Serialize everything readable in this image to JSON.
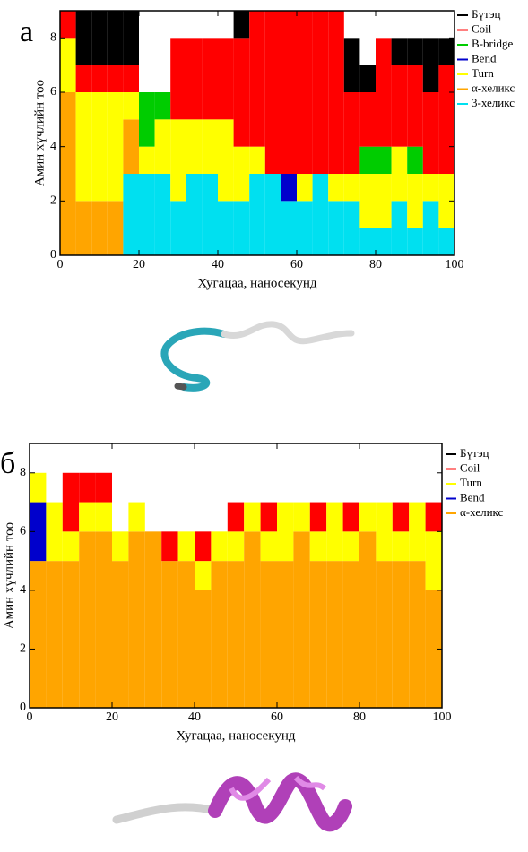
{
  "chart_data": [
    {
      "type": "stacked_bar",
      "panel_label": "а",
      "xlabel": "Хугацаа, наносекунд",
      "ylabel": "Амин хүчлийн тоо",
      "x": [
        0,
        4,
        8,
        12,
        16,
        20,
        24,
        28,
        32,
        36,
        40,
        44,
        48,
        52,
        56,
        60,
        64,
        68,
        72,
        76,
        80,
        84,
        88,
        92,
        96
      ],
      "xlim": [
        0,
        100
      ],
      "ylim": [
        0,
        9
      ],
      "xticks": [
        0,
        20,
        40,
        60,
        80,
        100
      ],
      "yticks": [
        0,
        2,
        4,
        6,
        8
      ],
      "series": [
        {
          "name": "Бүтэц",
          "color": "#000000",
          "values": [
            0,
            2,
            2,
            2,
            2,
            0,
            0,
            0,
            0,
            0,
            0,
            1,
            0,
            0,
            0,
            0,
            0,
            0,
            2,
            1,
            0,
            1,
            1,
            2,
            1
          ]
        },
        {
          "name": "Coil",
          "color": "#ff0000",
          "values": [
            1,
            1,
            1,
            1,
            1,
            0,
            0,
            3,
            3,
            3,
            3,
            4,
            5,
            6,
            6,
            6,
            6,
            6,
            3,
            2,
            4,
            3,
            3,
            3,
            4
          ]
        },
        {
          "name": "B-bridge",
          "color": "#00cc00",
          "values": [
            0,
            0,
            0,
            0,
            0,
            2,
            1,
            0,
            0,
            0,
            0,
            0,
            0,
            0,
            0,
            0,
            0,
            0,
            0,
            1,
            1,
            0,
            1,
            0,
            0
          ]
        },
        {
          "name": "Bend",
          "color": "#0000cc",
          "values": [
            0,
            0,
            0,
            0,
            0,
            0,
            0,
            0,
            0,
            0,
            0,
            0,
            0,
            0,
            1,
            0,
            0,
            0,
            0,
            0,
            0,
            0,
            0,
            0,
            0
          ]
        },
        {
          "name": "Turn",
          "color": "#ffff00",
          "values": [
            2,
            4,
            4,
            4,
            1,
            1,
            2,
            3,
            2,
            2,
            3,
            2,
            1,
            0,
            0,
            1,
            0,
            1,
            1,
            2,
            2,
            2,
            2,
            1,
            2
          ]
        },
        {
          "name": "α-хеликс",
          "color": "#ffa500",
          "values": [
            6,
            2,
            2,
            2,
            2,
            0,
            0,
            0,
            0,
            0,
            0,
            0,
            0,
            0,
            0,
            0,
            0,
            0,
            0,
            0,
            0,
            0,
            0,
            0,
            0
          ]
        },
        {
          "name": "3-хеликс",
          "color": "#00e0f0",
          "values": [
            0,
            0,
            0,
            0,
            3,
            3,
            3,
            2,
            3,
            3,
            2,
            2,
            3,
            3,
            2,
            2,
            3,
            2,
            2,
            1,
            1,
            2,
            1,
            2,
            1
          ]
        }
      ]
    },
    {
      "type": "stacked_bar",
      "panel_label": "б",
      "xlabel": "Хугацаа, наносекунд",
      "ylabel": "Амин хүчлийн тоо",
      "x": [
        0,
        4,
        8,
        12,
        16,
        20,
        24,
        28,
        32,
        36,
        40,
        44,
        48,
        52,
        56,
        60,
        64,
        68,
        72,
        76,
        80,
        84,
        88,
        92,
        96
      ],
      "xlim": [
        0,
        100
      ],
      "ylim": [
        0,
        9
      ],
      "xticks": [
        0,
        20,
        40,
        60,
        80,
        100
      ],
      "yticks": [
        0,
        2,
        4,
        6,
        8
      ],
      "series": [
        {
          "name": "Бүтэц",
          "color": "#000000",
          "values": [
            0,
            0,
            0,
            0,
            0,
            0,
            0,
            0,
            0,
            0,
            0,
            0,
            0,
            0,
            0,
            0,
            0,
            0,
            0,
            0,
            0,
            0,
            0,
            0,
            0
          ]
        },
        {
          "name": "Coil",
          "color": "#ff0000",
          "values": [
            0,
            0,
            2,
            1,
            1,
            0,
            0,
            0,
            1,
            0,
            1,
            0,
            1,
            0,
            1,
            0,
            0,
            1,
            0,
            1,
            0,
            0,
            1,
            0,
            1
          ]
        },
        {
          "name": "Turn",
          "color": "#ffff00",
          "values": [
            1,
            2,
            1,
            1,
            1,
            1,
            1,
            0,
            0,
            1,
            1,
            1,
            1,
            1,
            1,
            2,
            1,
            1,
            2,
            1,
            1,
            2,
            1,
            2,
            2
          ]
        },
        {
          "name": "Bend",
          "color": "#0000cc",
          "values": [
            2,
            0,
            0,
            0,
            0,
            0,
            0,
            0,
            0,
            0,
            0,
            0,
            0,
            0,
            0,
            0,
            0,
            0,
            0,
            0,
            0,
            0,
            0,
            0,
            0
          ]
        },
        {
          "name": "α-хеликс",
          "color": "#ffa500",
          "values": [
            5,
            5,
            5,
            6,
            6,
            5,
            6,
            6,
            5,
            5,
            4,
            5,
            5,
            6,
            5,
            5,
            6,
            5,
            5,
            5,
            6,
            5,
            5,
            5,
            4
          ]
        }
      ]
    }
  ]
}
